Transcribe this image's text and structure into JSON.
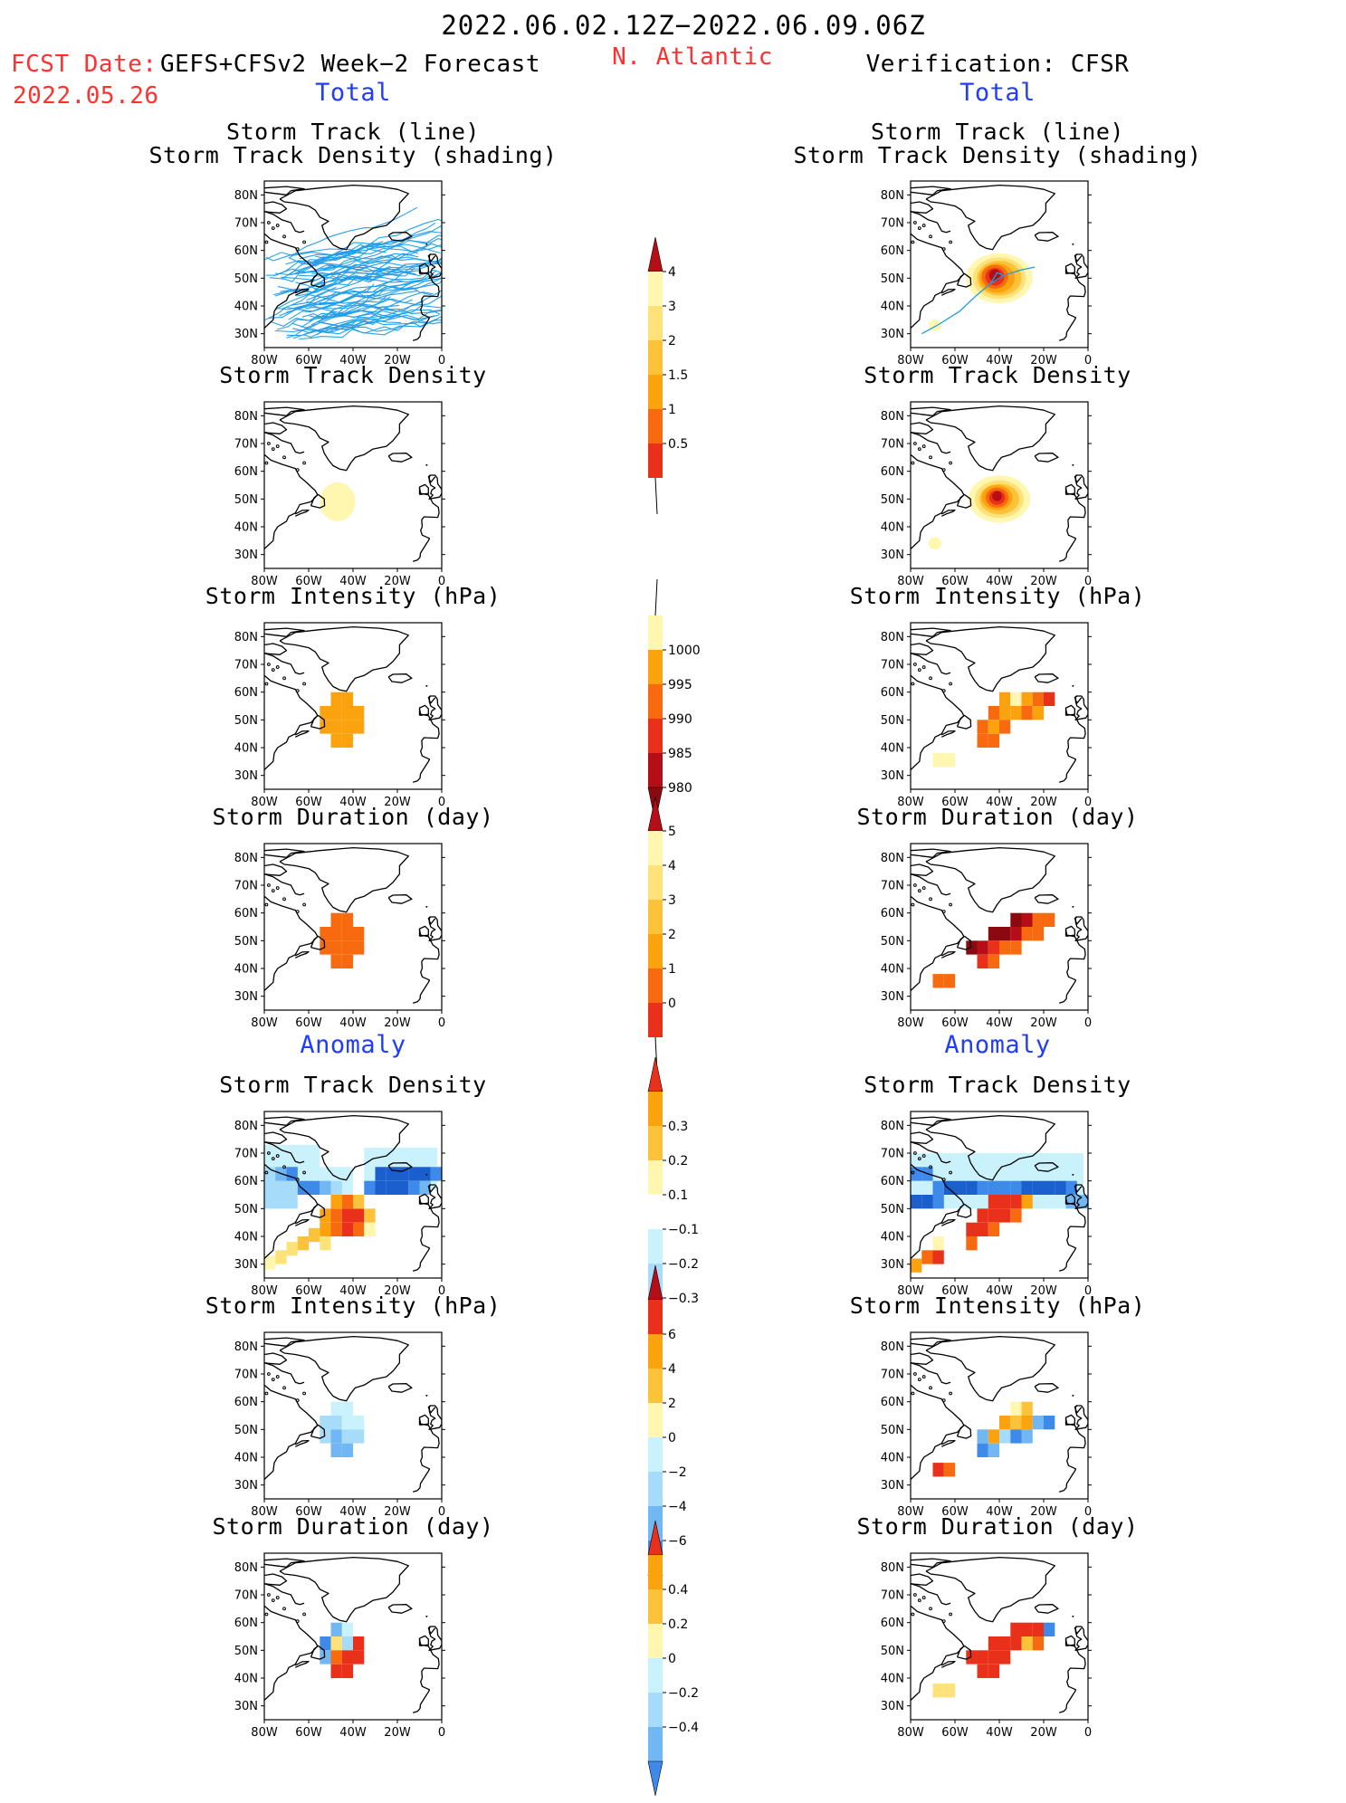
{
  "header": {
    "period": "2022.06.02.12Z−2022.06.09.06Z",
    "fcst_label": "FCST Date:",
    "model": "GEFS+CFSv2 Week−2 Forecast",
    "fcst_date": "2022.05.26",
    "region": "N. Atlantic",
    "verification": "Verification: CFSR"
  },
  "sections": {
    "total": "Total",
    "anomaly": "Anomaly"
  },
  "panel_titles": {
    "track_line": "Storm Track (line)",
    "track_shading": "Storm Track Density (shading)",
    "density": "Storm Track Density",
    "intensity": "Storm Intensity (hPa)",
    "duration": "Storm Duration (day)"
  },
  "axes": {
    "lat_ticks": [
      "80N",
      "70N",
      "60N",
      "50N",
      "40N",
      "30N"
    ],
    "lon_ticks": [
      "80W",
      "60W",
      "40W",
      "20W",
      "0"
    ]
  },
  "colors": {
    "pos": [
      "#fff7b0",
      "#fde27a",
      "#fcc23a",
      "#fba20f",
      "#f86a10",
      "#e9301a",
      "#b50e16",
      "#8a0a10"
    ],
    "neg": [
      "#c9f2fc",
      "#a6dcfa",
      "#70b7f3",
      "#3d8aea",
      "#1b5fcf"
    ],
    "track_line": "#1e9ce8"
  },
  "colorbars": [
    {
      "name": "density-total",
      "labels": [
        "4",
        "3",
        "2",
        "1.5",
        "1",
        "0.5"
      ]
    },
    {
      "name": "intensity-total",
      "labels": [
        "1000",
        "995",
        "990",
        "985",
        "980"
      ]
    },
    {
      "name": "duration-total",
      "labels": [
        "5",
        "4",
        "3",
        "2",
        "1",
        "0"
      ]
    },
    {
      "name": "density-anomaly",
      "labels": [
        "0.3",
        "0.2",
        "0.1",
        "−0.1",
        "−0.2",
        "−0.3"
      ]
    },
    {
      "name": "intensity-anomaly",
      "labels": [
        "6",
        "4",
        "2",
        "0",
        "−2",
        "−4",
        "−6"
      ]
    },
    {
      "name": "duration-anomaly",
      "labels": [
        "0.4",
        "0.2",
        "0",
        "−0.2",
        "−0.4"
      ]
    }
  ]
}
